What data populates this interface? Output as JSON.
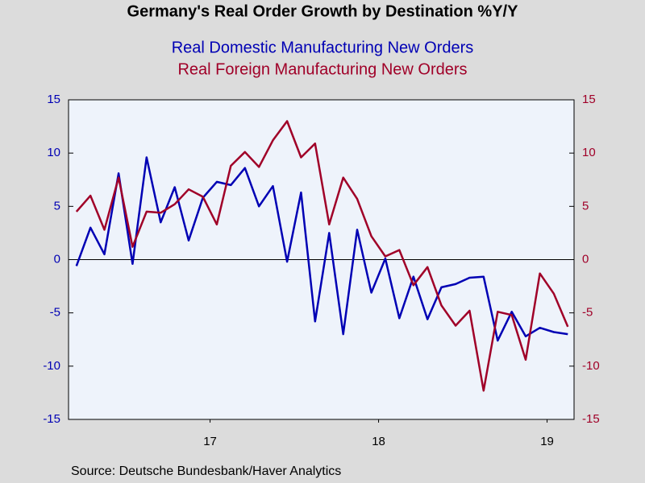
{
  "chart_data": {
    "type": "line",
    "title": "Germany's Real Order Growth by Destination %Y/Y",
    "source": "Source:  Deutsche Bundesbank/Haver Analytics",
    "x": [
      2016.667,
      2016.75,
      2016.833,
      2016.917,
      2017.0,
      2017.083,
      2017.167,
      2017.25,
      2017.333,
      2017.417,
      2017.5,
      2017.583,
      2017.667,
      2017.75,
      2017.833,
      2017.917,
      2018.0,
      2018.083,
      2018.167,
      2018.25,
      2018.333,
      2018.417,
      2018.5,
      2018.583,
      2018.667,
      2018.75,
      2018.833,
      2018.917,
      2019.0,
      2019.083,
      2019.167,
      2019.25,
      2019.333,
      2019.417,
      2019.5,
      2019.583
    ],
    "series": [
      {
        "name": "Real Domestic Manufacturing New Orders",
        "color": "#0000b4",
        "axis": "y",
        "values": [
          -0.6,
          3.0,
          0.5,
          8.1,
          -0.4,
          9.6,
          3.5,
          6.8,
          1.8,
          5.8,
          7.3,
          7.0,
          8.6,
          5.0,
          6.9,
          -0.2,
          6.3,
          -5.8,
          2.5,
          -7.0,
          2.8,
          -3.1,
          0.1,
          -5.5,
          -1.6,
          -5.6,
          -2.6,
          -2.3,
          -1.7,
          -1.6,
          -7.6,
          -4.9,
          -7.2,
          -6.4,
          -6.8,
          -7.0
        ]
      },
      {
        "name": "Real Foreign Manufacturing New Orders",
        "color": "#a00028",
        "axis": "y2",
        "values": [
          4.5,
          6.0,
          2.8,
          7.7,
          1.2,
          4.5,
          4.4,
          5.2,
          6.6,
          5.9,
          3.3,
          8.8,
          10.1,
          8.7,
          11.2,
          13.0,
          9.6,
          10.9,
          3.3,
          7.7,
          5.7,
          2.2,
          0.3,
          0.9,
          -2.4,
          -0.7,
          -4.3,
          -6.2,
          -4.8,
          -12.3,
          -4.9,
          -5.2,
          -9.4,
          -1.3,
          -3.2,
          -6.3
        ]
      }
    ],
    "xlim": [
      2016.62,
      2019.62
    ],
    "xticks": [
      {
        "value": 2017.46,
        "label": "17"
      },
      {
        "value": 2018.46,
        "label": "18"
      },
      {
        "value": 2019.46,
        "label": "19"
      }
    ],
    "ylim": [
      -15,
      15
    ],
    "yticks": [
      -15,
      -10,
      -5,
      0,
      5,
      10,
      15
    ],
    "y2lim": [
      -15,
      15
    ],
    "y2ticks": [
      -15,
      -10,
      -5,
      0,
      5,
      10,
      15
    ],
    "zero_line": true
  }
}
